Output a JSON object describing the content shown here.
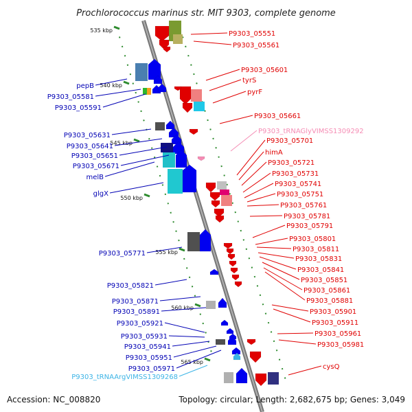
{
  "title": "Prochlorococcus marinus str. MIT 9303, complete genome",
  "accession": "Accession: NC_008820",
  "topology": "Topology: circular; Length: 2,682,675 bp; Genes: 3,049",
  "colors": {
    "left_labels": "#0000b4",
    "right_labels": "#e00000",
    "trna_left": "#3cb4e6",
    "trna_right": "#f58cb4",
    "backbone": "#8a8a8a",
    "tick": "#2e8b2e"
  },
  "kbp_ticks": [
    {
      "label": "535 kbp"
    },
    {
      "label": "540 kbp"
    },
    {
      "label": "545 kbp"
    },
    {
      "label": "550 kbp"
    },
    {
      "label": "555 kbp"
    },
    {
      "label": "560 kbp"
    },
    {
      "label": "565 kbp"
    }
  ],
  "left_genes": [
    {
      "label": "pepB",
      "kind": "gene"
    },
    {
      "label": "P9303_05581",
      "kind": "gene"
    },
    {
      "label": "P9303_05591",
      "kind": "gene"
    },
    {
      "label": "P9303_05631",
      "kind": "gene"
    },
    {
      "label": "P9303_05641",
      "kind": "gene"
    },
    {
      "label": "P9303_05651",
      "kind": "gene"
    },
    {
      "label": "P9303_05671",
      "kind": "gene"
    },
    {
      "label": "melB",
      "kind": "gene"
    },
    {
      "label": "glgX",
      "kind": "gene"
    },
    {
      "label": "P9303_05771",
      "kind": "gene"
    },
    {
      "label": "P9303_05821",
      "kind": "gene"
    },
    {
      "label": "P9303_05871",
      "kind": "gene"
    },
    {
      "label": "P9303_05891",
      "kind": "gene"
    },
    {
      "label": "P9303_05921",
      "kind": "gene"
    },
    {
      "label": "P9303_05931",
      "kind": "gene"
    },
    {
      "label": "P9303_05941",
      "kind": "gene"
    },
    {
      "label": "P9303_05951",
      "kind": "gene"
    },
    {
      "label": "P9303_05971",
      "kind": "gene"
    },
    {
      "label": "P9303_tRNAArgVIMSS1309268",
      "kind": "trna"
    }
  ],
  "right_genes": [
    {
      "label": "P9303_05551",
      "kind": "gene"
    },
    {
      "label": "P9303_05561",
      "kind": "gene"
    },
    {
      "label": "P9303_05601",
      "kind": "gene"
    },
    {
      "label": "tyrS",
      "kind": "gene"
    },
    {
      "label": "pyrF",
      "kind": "gene"
    },
    {
      "label": "P9303_05661",
      "kind": "gene"
    },
    {
      "label": "P9303_tRNAGlyVIMSS1309292",
      "kind": "trna"
    },
    {
      "label": "P9303_05701",
      "kind": "gene"
    },
    {
      "label": "himA",
      "kind": "gene"
    },
    {
      "label": "P9303_05721",
      "kind": "gene"
    },
    {
      "label": "P9303_05731",
      "kind": "gene"
    },
    {
      "label": "P9303_05741",
      "kind": "gene"
    },
    {
      "label": "P9303_05751",
      "kind": "gene"
    },
    {
      "label": "P9303_05761",
      "kind": "gene"
    },
    {
      "label": "P9303_05781",
      "kind": "gene"
    },
    {
      "label": "P9303_05791",
      "kind": "gene"
    },
    {
      "label": "P9303_05801",
      "kind": "gene"
    },
    {
      "label": "P9303_05811",
      "kind": "gene"
    },
    {
      "label": "P9303_05831",
      "kind": "gene"
    },
    {
      "label": "P9303_05841",
      "kind": "gene"
    },
    {
      "label": "P9303_05851",
      "kind": "gene"
    },
    {
      "label": "P9303_05861",
      "kind": "gene"
    },
    {
      "label": "P9303_05881",
      "kind": "gene"
    },
    {
      "label": "P9303_05901",
      "kind": "gene"
    },
    {
      "label": "P9303_05911",
      "kind": "gene"
    },
    {
      "label": "P9303_05961",
      "kind": "gene"
    },
    {
      "label": "P9303_05981",
      "kind": "gene"
    },
    {
      "label": "cysQ",
      "kind": "gene"
    }
  ]
}
